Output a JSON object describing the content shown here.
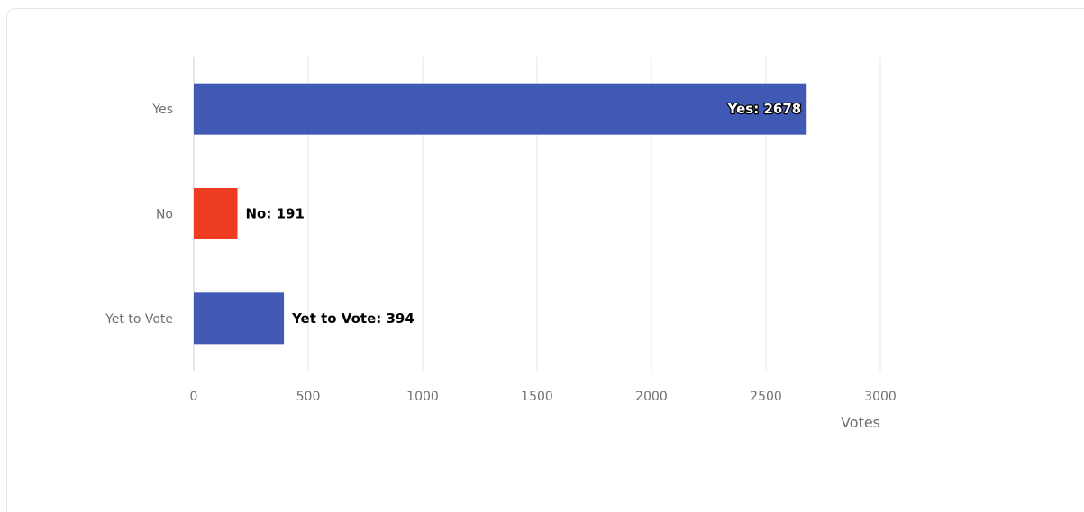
{
  "chart_data": {
    "type": "bar",
    "orientation": "horizontal",
    "categories": [
      "Yes",
      "No",
      "Yet to Vote"
    ],
    "values": [
      2678,
      191,
      394
    ],
    "data_labels": [
      "Yes: 2678",
      "No: 191",
      "Yet to Vote: 394"
    ],
    "colors": [
      "#4059b5",
      "#ee3b24",
      "#4059b5"
    ],
    "xlabel": "Votes",
    "ylabel": "",
    "xlim": [
      0,
      3000
    ],
    "xticks": [
      "0",
      "500",
      "1000",
      "1500",
      "2000",
      "2500",
      "3000"
    ],
    "grid": "vertical",
    "legend": "none"
  }
}
